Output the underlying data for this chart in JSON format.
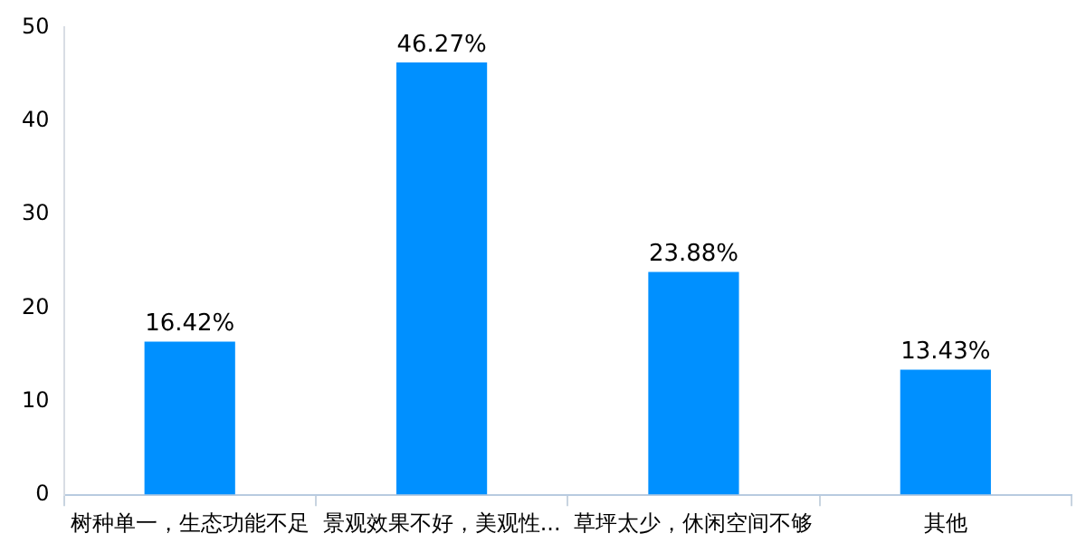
{
  "chart_data": {
    "type": "bar",
    "categories": [
      "树种单一，生态功能不足",
      "景观效果不好，美观性...",
      "草坪太少，休闲空间不够",
      "其他"
    ],
    "values": [
      16.42,
      46.27,
      23.88,
      13.43
    ],
    "value_labels": [
      "16.42%",
      "46.27%",
      "23.88%",
      "13.43%"
    ],
    "color": "#0090ff",
    "ylim": [
      0,
      50
    ],
    "yticks": [
      0,
      10,
      20,
      30,
      40,
      50
    ],
    "grid": false,
    "legend": false
  }
}
